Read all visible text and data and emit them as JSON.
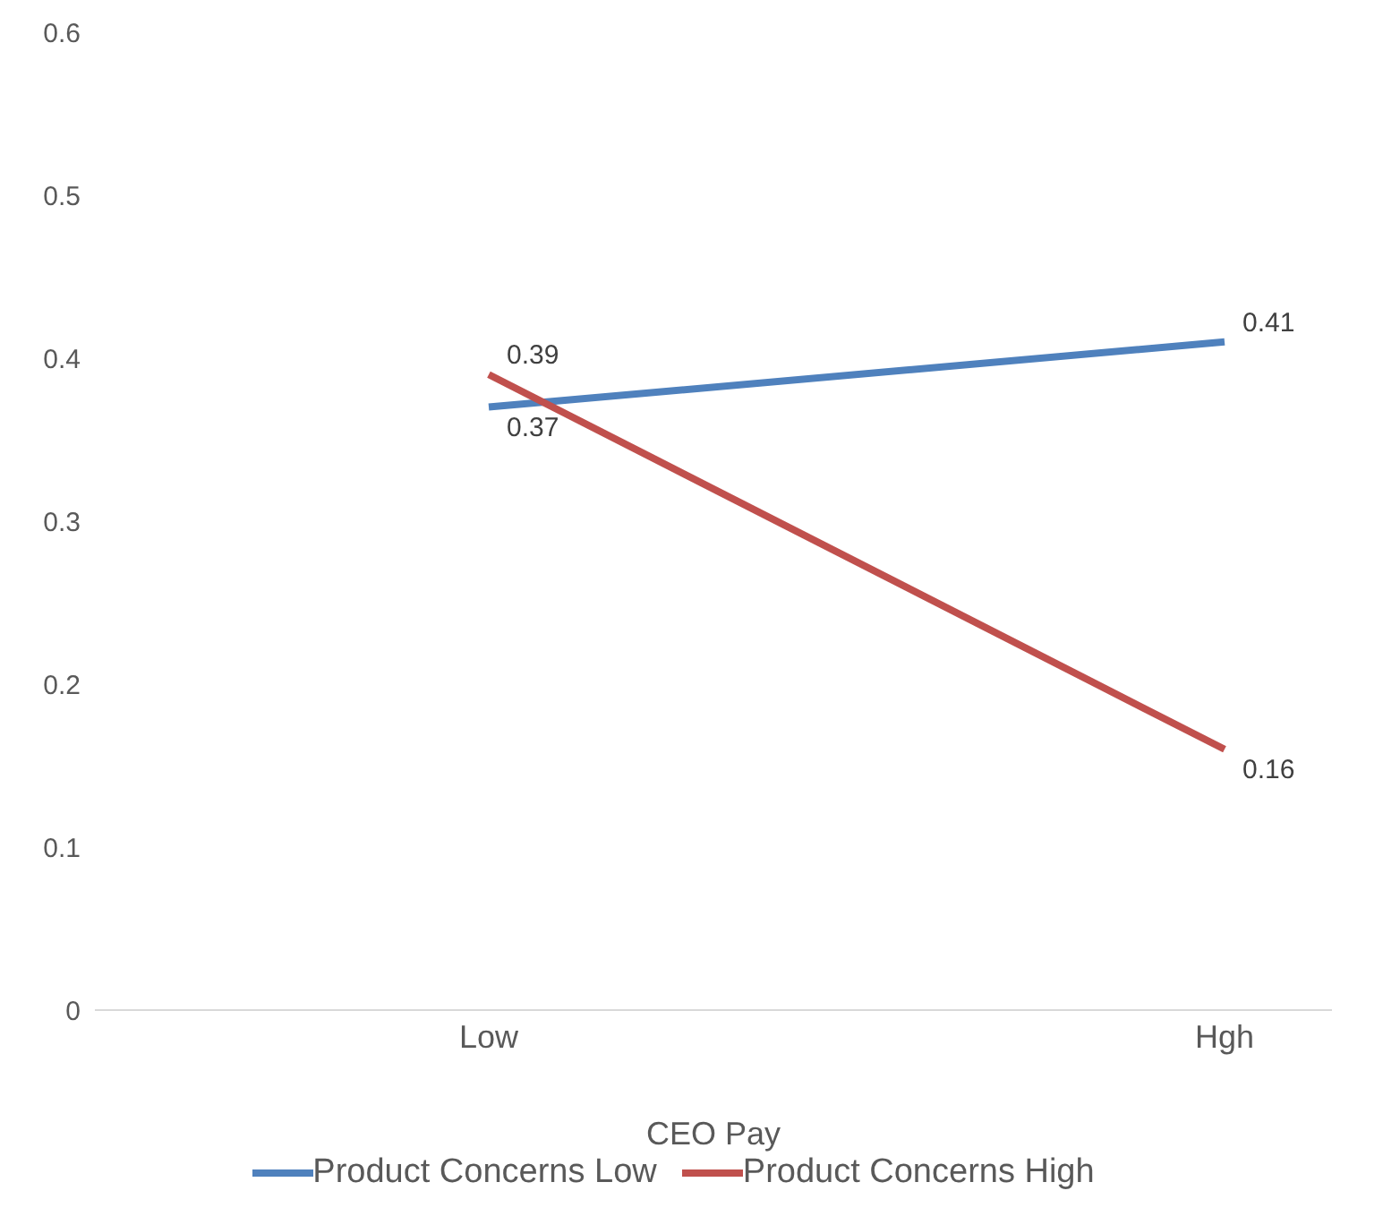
{
  "chart_data": {
    "type": "line",
    "xlabel": "CEO Pay",
    "categories": [
      "Low",
      "Hgh"
    ],
    "series": [
      {
        "name": "Product Concerns Low",
        "color": "#4f81bd",
        "values": [
          0.37,
          0.41
        ]
      },
      {
        "name": "Product Concerns High",
        "color": "#c0504d",
        "values": [
          0.39,
          0.16
        ]
      }
    ],
    "ylim": [
      0,
      0.6
    ],
    "yticks": [
      0,
      0.1,
      0.2,
      0.3,
      0.4,
      0.5,
      0.6
    ],
    "grid": false,
    "legend": "bottom",
    "data_labels": true,
    "marker": "none",
    "line_style": "solid"
  }
}
